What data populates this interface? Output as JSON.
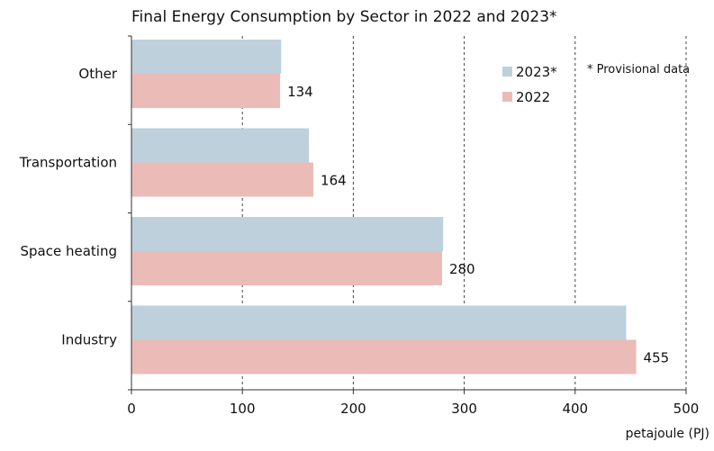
{
  "chart_data": {
    "type": "bar",
    "orientation": "horizontal",
    "title": "Final Energy Consumption by Sector in 2022 and 2023*",
    "categories": [
      "Other",
      "Transportation",
      "Space heating",
      "Industry"
    ],
    "series": [
      {
        "name": "2023*",
        "values": [
          135,
          160,
          281,
          446
        ],
        "color": "#bdd0dc"
      },
      {
        "name": "2022",
        "values": [
          134,
          164,
          280,
          455
        ],
        "color": "#ebbbb7",
        "show_labels": true
      }
    ],
    "xlim": [
      0,
      500
    ],
    "xticks": [
      0,
      100,
      200,
      300,
      400,
      500
    ],
    "xlabel": "petajoule (PJ)",
    "grid": "vertical dashed",
    "legend_position": "top-right",
    "note": "* Provisional data"
  }
}
